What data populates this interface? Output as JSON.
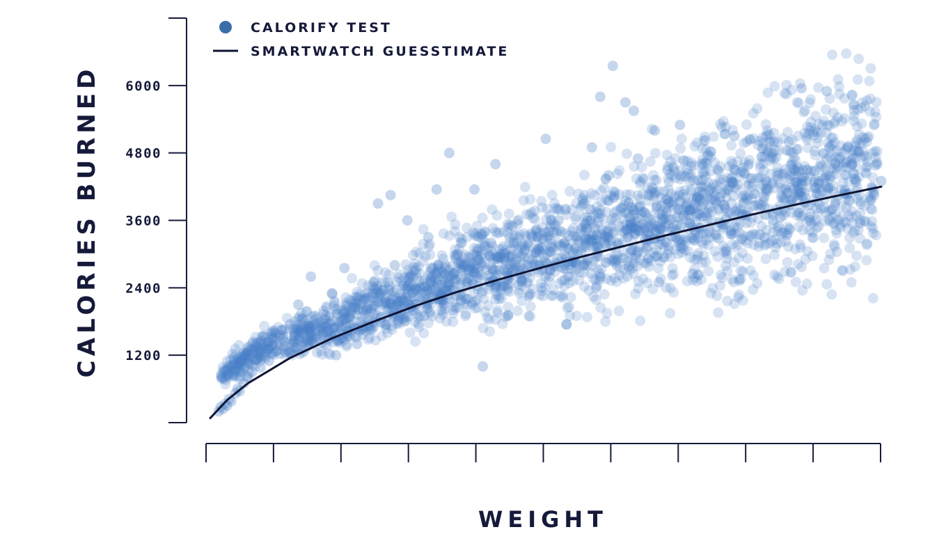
{
  "chart_data": {
    "type": "scatter",
    "xlabel": "WEIGHT",
    "ylabel": "CALORIES BURNED",
    "y_ticks": [
      1200,
      2400,
      3600,
      4800,
      6000
    ],
    "ylim": [
      0,
      7200
    ],
    "x_tick_labels": [],
    "grid": false,
    "legend_position": "top-left",
    "colors": {
      "scatter": "#4a80c8",
      "curve": "#0e1533",
      "axis": "#151a3a",
      "legend_marker": "#3a6ea8"
    },
    "series": [
      {
        "name": "CALORIFY TEST",
        "kind": "scatter",
        "sampled_points_note_free": true,
        "points": [
          [
            0.3,
            200
          ],
          [
            0.35,
            280
          ],
          [
            0.4,
            240
          ],
          [
            0.45,
            330
          ],
          [
            0.5,
            300
          ],
          [
            0.55,
            420
          ],
          [
            0.6,
            380
          ],
          [
            0.7,
            520
          ],
          [
            0.75,
            600
          ],
          [
            0.8,
            560
          ],
          [
            0.9,
            700
          ],
          [
            1.0,
            820
          ],
          [
            1.0,
            1060
          ],
          [
            1.1,
            900
          ],
          [
            1.2,
            1120
          ],
          [
            1.3,
            980
          ],
          [
            1.4,
            1250
          ],
          [
            1.5,
            1100
          ],
          [
            1.6,
            1500
          ],
          [
            1.7,
            1380
          ],
          [
            1.8,
            1650
          ],
          [
            1.9,
            1250
          ],
          [
            2.0,
            1750
          ],
          [
            2.1,
            1550
          ],
          [
            2.2,
            2100
          ],
          [
            2.3,
            1850
          ],
          [
            2.5,
            2600
          ],
          [
            2.6,
            1900
          ],
          [
            2.8,
            1750
          ],
          [
            3.0,
            2300
          ],
          [
            3.1,
            1200
          ],
          [
            3.3,
            2750
          ],
          [
            3.5,
            2050
          ],
          [
            3.6,
            1400
          ],
          [
            3.8,
            2200
          ],
          [
            4.0,
            2500
          ],
          [
            4.1,
            3900
          ],
          [
            4.3,
            1750
          ],
          [
            4.4,
            4050
          ],
          [
            4.5,
            2800
          ],
          [
            4.6,
            2150
          ],
          [
            4.8,
            3600
          ],
          [
            5.0,
            2400
          ],
          [
            5.2,
            1900
          ],
          [
            5.3,
            3300
          ],
          [
            5.4,
            2600
          ],
          [
            5.5,
            4150
          ],
          [
            5.6,
            2300
          ],
          [
            5.8,
            4800
          ],
          [
            5.9,
            2650
          ],
          [
            6.0,
            3000
          ],
          [
            6.2,
            2200
          ],
          [
            6.4,
            4150
          ],
          [
            6.5,
            2900
          ],
          [
            6.6,
            1000
          ],
          [
            6.8,
            3200
          ],
          [
            6.9,
            4600
          ],
          [
            7.0,
            2700
          ],
          [
            7.2,
            1900
          ],
          [
            7.3,
            3500
          ],
          [
            7.5,
            2950
          ],
          [
            7.7,
            2250
          ],
          [
            7.9,
            3300
          ],
          [
            8.1,
            5050
          ],
          [
            8.2,
            2700
          ],
          [
            8.4,
            3600
          ],
          [
            8.6,
            1750
          ],
          [
            8.8,
            3100
          ],
          [
            9.0,
            3900
          ],
          [
            9.2,
            4900
          ],
          [
            9.3,
            2400
          ],
          [
            9.4,
            5800
          ],
          [
            9.5,
            3300
          ],
          [
            9.6,
            4400
          ],
          [
            9.7,
            6350
          ],
          [
            9.8,
            2900
          ],
          [
            10.0,
            5700
          ],
          [
            10.1,
            3650
          ],
          [
            10.2,
            5550
          ],
          [
            10.3,
            4700
          ],
          [
            10.5,
            3100
          ],
          [
            10.7,
            5200
          ],
          [
            10.8,
            2500
          ],
          [
            11.0,
            4500
          ],
          [
            11.2,
            3300
          ],
          [
            11.3,
            5300
          ],
          [
            11.5,
            3700
          ],
          [
            11.6,
            2650
          ],
          [
            11.8,
            4200
          ],
          [
            12.0,
            3400
          ],
          [
            12.2,
            4500
          ],
          [
            12.4,
            3050
          ],
          [
            12.6,
            5100
          ],
          [
            12.8,
            3700
          ],
          [
            13.0,
            4350
          ],
          [
            13.2,
            3350
          ],
          [
            13.5,
            4800
          ],
          [
            13.7,
            3650
          ],
          [
            13.9,
            5000
          ],
          [
            14.0,
            4400
          ],
          [
            14.2,
            5950
          ],
          [
            14.4,
            3600
          ],
          [
            14.6,
            4250
          ],
          [
            14.8,
            5900
          ],
          [
            15.1,
            4700
          ],
          [
            15.4,
            4600
          ],
          [
            15.6,
            3550
          ],
          [
            16.0,
            4600
          ],
          [
            16.1,
            4300
          ]
        ]
      },
      {
        "name": "SMARTWATCH GUESSTIMATE",
        "kind": "line",
        "points": [
          [
            0.1,
            80
          ],
          [
            0.5,
            400
          ],
          [
            1.0,
            700
          ],
          [
            2.0,
            1150
          ],
          [
            3.0,
            1500
          ],
          [
            4.0,
            1800
          ],
          [
            5.0,
            2080
          ],
          [
            6.0,
            2330
          ],
          [
            7.0,
            2550
          ],
          [
            8.0,
            2760
          ],
          [
            9.0,
            2960
          ],
          [
            10.0,
            3150
          ],
          [
            11.0,
            3340
          ],
          [
            12.0,
            3520
          ],
          [
            13.0,
            3700
          ],
          [
            14.0,
            3870
          ],
          [
            15.0,
            4030
          ],
          [
            16.1,
            4200
          ]
        ]
      }
    ],
    "xlim": [
      0,
      16.2
    ]
  }
}
